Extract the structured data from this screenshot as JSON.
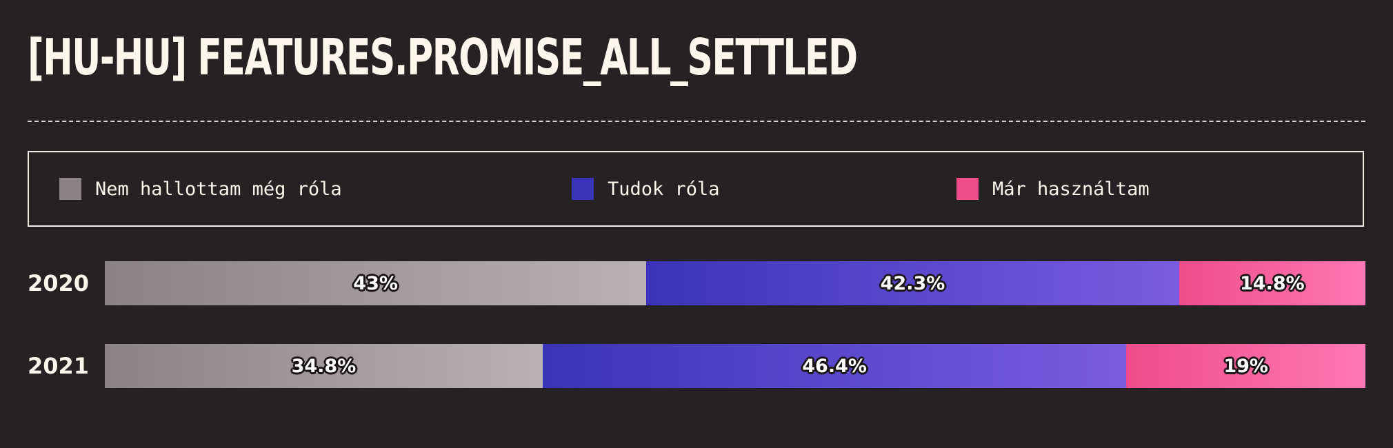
{
  "colors": {
    "background": "#262224",
    "text": "#fdf6ec",
    "series": [
      "#8b8286",
      "#3a34b9",
      "#ef4d8a"
    ]
  },
  "chart_data": {
    "type": "bar",
    "orientation": "horizontal",
    "stacked": true,
    "normalized_percent": true,
    "title": "[HU-HU] FEATURES.PROMISE_ALL_SETTLED",
    "legend_position": "top",
    "categories": [
      "2020",
      "2021"
    ],
    "series": [
      {
        "name": "Nem hallottam még róla",
        "values": [
          43,
          34.8
        ],
        "labels": [
          "43%",
          "34.8%"
        ],
        "color": "#8b8286"
      },
      {
        "name": "Tudok róla",
        "values": [
          42.3,
          46.4
        ],
        "labels": [
          "42.3%",
          "46.4%"
        ],
        "color": "#3a34b9"
      },
      {
        "name": "Már használtam",
        "values": [
          14.8,
          19
        ],
        "labels": [
          "14.8%",
          "19%"
        ],
        "color": "#ef4d8a"
      }
    ]
  }
}
